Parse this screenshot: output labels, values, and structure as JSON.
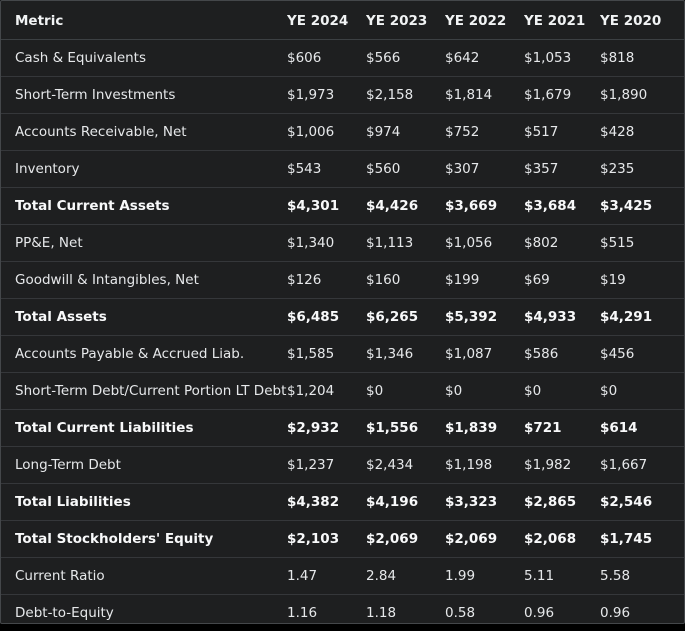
{
  "table": {
    "headers": [
      "Metric",
      "YE 2024",
      "YE 2023",
      "YE 2022",
      "YE 2021",
      "YE 2020"
    ],
    "rows": [
      {
        "cells": [
          "Cash & Equivalents",
          "$606",
          "$566",
          "$642",
          "$1,053",
          "$818"
        ],
        "bold": false
      },
      {
        "cells": [
          "Short-Term Investments",
          "$1,973",
          "$2,158",
          "$1,814",
          "$1,679",
          "$1,890"
        ],
        "bold": false
      },
      {
        "cells": [
          "Accounts Receivable, Net",
          "$1,006",
          "$974",
          "$752",
          "$517",
          "$428"
        ],
        "bold": false
      },
      {
        "cells": [
          "Inventory",
          "$543",
          "$560",
          "$307",
          "$357",
          "$235"
        ],
        "bold": false
      },
      {
        "cells": [
          "Total Current Assets",
          "$4,301",
          "$4,426",
          "$3,669",
          "$3,684",
          "$3,425"
        ],
        "bold": true
      },
      {
        "cells": [
          "PP&E, Net",
          "$1,340",
          "$1,113",
          "$1,056",
          "$802",
          "$515"
        ],
        "bold": false
      },
      {
        "cells": [
          "Goodwill & Intangibles, Net",
          "$126",
          "$160",
          "$199",
          "$69",
          "$19"
        ],
        "bold": false
      },
      {
        "cells": [
          "Total Assets",
          "$6,485",
          "$6,265",
          "$5,392",
          "$4,933",
          "$4,291"
        ],
        "bold": true
      },
      {
        "cells": [
          "Accounts Payable & Accrued Liab.",
          "$1,585",
          "$1,346",
          "$1,087",
          "$586",
          "$456"
        ],
        "bold": false
      },
      {
        "cells": [
          "Short-Term Debt/Current Portion LT Debt",
          "$1,204",
          "$0",
          "$0",
          "$0",
          "$0"
        ],
        "bold": false
      },
      {
        "cells": [
          "Total Current Liabilities",
          "$2,932",
          "$1,556",
          "$1,839",
          "$721",
          "$614"
        ],
        "bold": true
      },
      {
        "cells": [
          "Long-Term Debt",
          "$1,237",
          "$2,434",
          "$1,198",
          "$1,982",
          "$1,667"
        ],
        "bold": false
      },
      {
        "cells": [
          "Total Liabilities",
          "$4,382",
          "$4,196",
          "$3,323",
          "$2,865",
          "$2,546"
        ],
        "bold": true
      },
      {
        "cells": [
          "Total Stockholders' Equity",
          "$2,103",
          "$2,069",
          "$2,069",
          "$2,068",
          "$1,745"
        ],
        "bold": true
      },
      {
        "cells": [
          "Current Ratio",
          "1.47",
          "2.84",
          "1.99",
          "5.11",
          "5.58"
        ],
        "bold": false
      },
      {
        "cells": [
          "Debt-to-Equity",
          "1.16",
          "1.18",
          "0.58",
          "0.96",
          "0.96"
        ],
        "bold": false
      }
    ]
  }
}
